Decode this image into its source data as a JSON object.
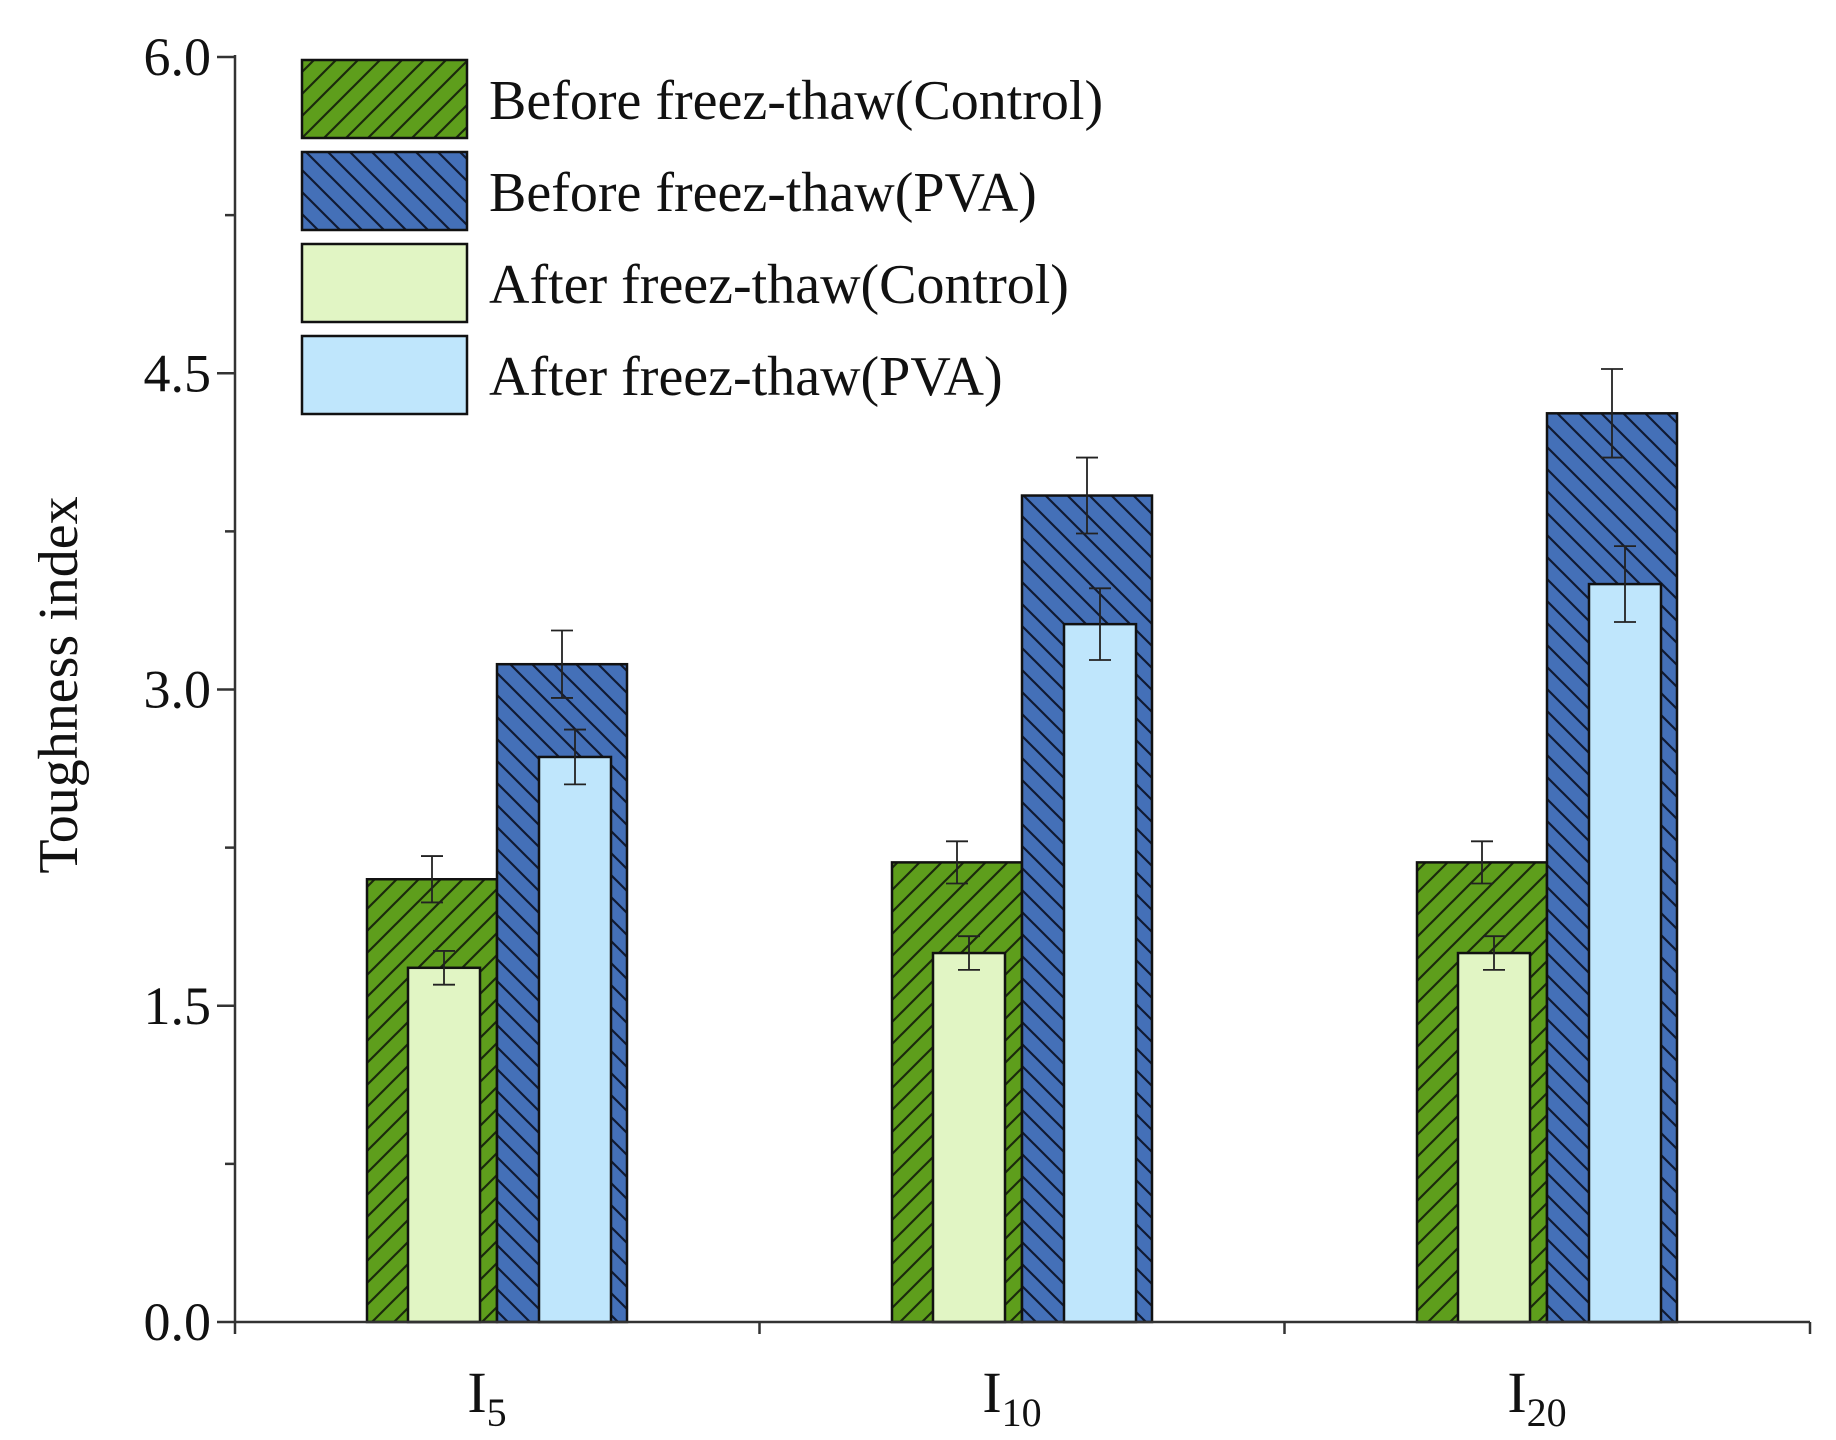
{
  "chart_data": {
    "type": "bar",
    "title": "",
    "xlabel": "",
    "ylabel": "Toughness index",
    "ylim": [
      0,
      6
    ],
    "yticks": [
      "0.0",
      "1.5",
      "3.0",
      "4.5",
      "6.0"
    ],
    "categories": [
      {
        "base": "I",
        "sub": "5"
      },
      {
        "base": "I",
        "sub": "10"
      },
      {
        "base": "I",
        "sub": "20"
      }
    ],
    "legend_position": "top-left",
    "series": [
      {
        "name": "Before freez-thaw(Control)",
        "values": [
          2.1,
          2.18,
          2.18
        ],
        "errors": [
          0.11,
          0.1,
          0.1
        ],
        "color": "#5e9e1c",
        "hatch": "forward"
      },
      {
        "name": "Before freez-thaw(PVA)",
        "values": [
          3.12,
          3.92,
          4.31
        ],
        "errors": [
          0.16,
          0.18,
          0.21
        ],
        "color": "#4470b8",
        "hatch": "backward"
      },
      {
        "name": "After freez-thaw(Control)",
        "values": [
          1.68,
          1.75,
          1.75
        ],
        "errors": [
          0.08,
          0.08,
          0.08
        ],
        "color": "#e1f5c4",
        "hatch": "none"
      },
      {
        "name": "After freez-thaw(PVA)",
        "values": [
          2.68,
          3.31,
          3.5
        ],
        "errors": [
          0.13,
          0.17,
          0.18
        ],
        "color": "#bfe6fc",
        "hatch": "none"
      }
    ]
  }
}
